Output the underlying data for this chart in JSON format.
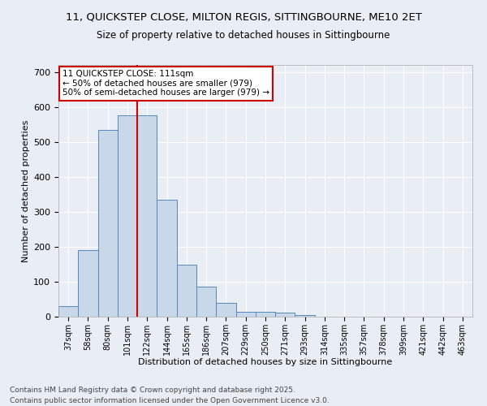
{
  "title1": "11, QUICKSTEP CLOSE, MILTON REGIS, SITTINGBOURNE, ME10 2ET",
  "title2": "Size of property relative to detached houses in Sittingbourne",
  "xlabel": "Distribution of detached houses by size in Sittingbourne",
  "ylabel": "Number of detached properties",
  "bar_values": [
    30,
    190,
    535,
    575,
    575,
    335,
    148,
    85,
    40,
    13,
    13,
    11,
    5,
    0,
    0,
    0,
    0,
    0,
    0,
    0,
    0
  ],
  "categories": [
    "37sqm",
    "58sqm",
    "80sqm",
    "101sqm",
    "122sqm",
    "144sqm",
    "165sqm",
    "186sqm",
    "207sqm",
    "229sqm",
    "250sqm",
    "271sqm",
    "293sqm",
    "314sqm",
    "335sqm",
    "357sqm",
    "378sqm",
    "399sqm",
    "421sqm",
    "442sqm",
    "463sqm"
  ],
  "bar_color": "#c8d8e8",
  "bar_edge_color": "#5588bb",
  "vline_x_index": 3.5,
  "vline_color": "#cc0000",
  "annotation_text": "11 QUICKSTEP CLOSE: 111sqm\n← 50% of detached houses are smaller (979)\n50% of semi-detached houses are larger (979) →",
  "annotation_box_color": "#ffffff",
  "annotation_box_edge": "#cc0000",
  "ylim": [
    0,
    720
  ],
  "yticks": [
    0,
    100,
    200,
    300,
    400,
    500,
    600,
    700
  ],
  "background_color": "#e8eef4",
  "grid_color": "#ffffff",
  "footer1": "Contains HM Land Registry data © Crown copyright and database right 2025.",
  "footer2": "Contains public sector information licensed under the Open Government Licence v3.0."
}
